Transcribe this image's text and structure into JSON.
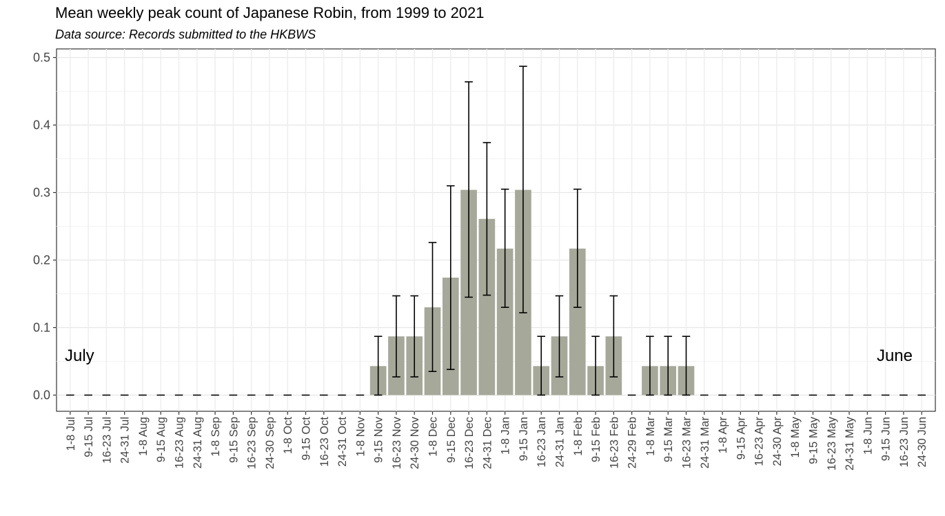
{
  "chart_data": {
    "type": "bar",
    "title": "Mean weekly peak count of Japanese Robin, from 1999 to 2021",
    "subtitle": "Data source: Records submitted to the HKBWS",
    "xlabel": "",
    "ylabel": "",
    "ylim": [
      0,
      0.5
    ],
    "yticks": [
      "0.0",
      "0.1",
      "0.2",
      "0.3",
      "0.4",
      "0.5"
    ],
    "grid": true,
    "bar_color": "#a6a99a",
    "annotations": {
      "left": "July",
      "right": "June"
    },
    "categories": [
      "1-8 Jul",
      "9-15 Jul",
      "16-23 Jul",
      "24-31 Jul",
      "1-8 Aug",
      "9-15 Aug",
      "16-23 Aug",
      "24-31 Aug",
      "1-8 Sep",
      "9-15 Sep",
      "16-23 Sep",
      "24-30 Sep",
      "1-8 Oct",
      "9-15 Oct",
      "16-23 Oct",
      "24-31 Oct",
      "1-8 Nov",
      "9-15 Nov",
      "16-23 Nov",
      "24-30 Nov",
      "1-8 Dec",
      "9-15 Dec",
      "16-23 Dec",
      "24-31 Dec",
      "1-8 Jan",
      "9-15 Jan",
      "16-23 Jan",
      "24-31 Jan",
      "1-8 Feb",
      "9-15 Feb",
      "16-23 Feb",
      "24-29 Feb",
      "1-8 Mar",
      "9-15 Mar",
      "16-23 Mar",
      "24-31 Mar",
      "1-8 Apr",
      "9-15 Apr",
      "16-23 Apr",
      "24-30 Apr",
      "1-8 May",
      "9-15 May",
      "16-23 May",
      "24-31 May",
      "1-8 Jun",
      "9-15 Jun",
      "16-23 Jun",
      "24-30 Jun"
    ],
    "values": [
      0,
      0,
      0,
      0,
      0,
      0,
      0,
      0,
      0,
      0,
      0,
      0,
      0,
      0,
      0,
      0,
      0,
      0.043,
      0.087,
      0.087,
      0.13,
      0.174,
      0.304,
      0.261,
      0.217,
      0.304,
      0.043,
      0.087,
      0.217,
      0.043,
      0.087,
      0,
      0.043,
      0.043,
      0.043,
      0,
      0,
      0,
      0,
      0,
      0,
      0,
      0,
      0,
      0,
      0,
      0,
      0
    ],
    "error_low": [
      0,
      0,
      0,
      0,
      0,
      0,
      0,
      0,
      0,
      0,
      0,
      0,
      0,
      0,
      0,
      0,
      0,
      0,
      0.027,
      0.027,
      0.035,
      0.038,
      0.145,
      0.148,
      0.13,
      0.122,
      0,
      0.027,
      0.13,
      0,
      0.027,
      0,
      0,
      0,
      0,
      0,
      0,
      0,
      0,
      0,
      0,
      0,
      0,
      0,
      0,
      0,
      0,
      0
    ],
    "error_high": [
      0,
      0,
      0,
      0,
      0,
      0,
      0,
      0,
      0,
      0,
      0,
      0,
      0,
      0,
      0,
      0,
      0,
      0.087,
      0.147,
      0.147,
      0.226,
      0.31,
      0.464,
      0.374,
      0.305,
      0.487,
      0.087,
      0.147,
      0.305,
      0.087,
      0.147,
      0,
      0.087,
      0.087,
      0.087,
      0,
      0,
      0,
      0,
      0,
      0,
      0,
      0,
      0,
      0,
      0,
      0,
      0
    ]
  }
}
